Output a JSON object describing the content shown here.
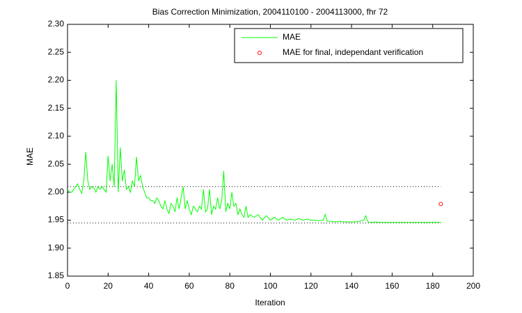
{
  "chart_data": {
    "type": "line",
    "title": "Bias Correction Minimization, 2004110100 - 2004113000, fhr 72",
    "x_label": "Iteration",
    "y_label": "MAE",
    "xlim": [
      0,
      200
    ],
    "xticks": [
      0,
      20,
      40,
      60,
      80,
      100,
      120,
      140,
      160,
      180,
      200
    ],
    "ylim": [
      1.85,
      2.3
    ],
    "yticks": [
      {
        "value": 1.85,
        "label": "1.85"
      },
      {
        "value": 1.9,
        "label": "1.90"
      },
      {
        "value": 1.95,
        "label": "1.95"
      },
      {
        "value": 2.0,
        "label": "2.00"
      },
      {
        "value": 2.05,
        "label": "2.05"
      },
      {
        "value": 2.1,
        "label": "2.10"
      },
      {
        "value": 2.15,
        "label": "2.15"
      },
      {
        "value": 2.2,
        "label": "2.20"
      },
      {
        "value": 2.25,
        "label": "2.25"
      },
      {
        "value": 2.3,
        "label": "2.30"
      }
    ],
    "legend": "top-right",
    "hlines": [
      2.01,
      1.945
    ],
    "hline_x": [
      0,
      184
    ],
    "series": [
      {
        "name": "MAE",
        "color": "#00ff00",
        "x": [
          0,
          1,
          2,
          3,
          4,
          5,
          6,
          7,
          8,
          9,
          10,
          11,
          12,
          13,
          14,
          15,
          16,
          17,
          18,
          19,
          20,
          21,
          22,
          23,
          24,
          25,
          26,
          27,
          28,
          29,
          30,
          31,
          32,
          33,
          34,
          35,
          36,
          37,
          38,
          39,
          40,
          41,
          42,
          43,
          44,
          45,
          46,
          47,
          48,
          49,
          50,
          51,
          52,
          53,
          54,
          55,
          56,
          57,
          58,
          59,
          60,
          61,
          62,
          63,
          64,
          65,
          66,
          67,
          68,
          69,
          70,
          71,
          72,
          73,
          74,
          75,
          76,
          77,
          78,
          79,
          80,
          81,
          82,
          83,
          84,
          85,
          86,
          87,
          88,
          89,
          90,
          92,
          94,
          96,
          98,
          100,
          102,
          104,
          106,
          108,
          110,
          112,
          114,
          116,
          118,
          120,
          122,
          124,
          126,
          127,
          128,
          130,
          132,
          134,
          136,
          138,
          140,
          142,
          144,
          146,
          147,
          148,
          150,
          152,
          154,
          156,
          158,
          160,
          162,
          164,
          166,
          168,
          170,
          172,
          174,
          176,
          178,
          180,
          182,
          184
        ],
        "values": [
          2.005,
          2.0,
          2.0,
          2.005,
          2.01,
          2.015,
          2.005,
          1.998,
          2.02,
          2.072,
          2.02,
          2.005,
          2.01,
          2.008,
          2.0,
          2.01,
          2.005,
          2.01,
          2.005,
          2.0,
          2.065,
          2.02,
          2.05,
          2.01,
          2.2,
          2.0,
          2.08,
          2.02,
          2.04,
          2.005,
          2.01,
          2.0,
          2.02,
          2.01,
          2.063,
          2.02,
          2.03,
          2.01,
          2.0,
          1.99,
          1.99,
          1.985,
          1.985,
          1.98,
          1.99,
          1.985,
          1.975,
          1.97,
          1.985,
          1.97,
          1.962,
          1.98,
          1.975,
          1.965,
          1.99,
          1.97,
          1.99,
          2.01,
          1.97,
          1.985,
          1.97,
          1.96,
          1.975,
          1.97,
          1.965,
          1.975,
          1.97,
          2.005,
          1.965,
          1.97,
          2.005,
          1.96,
          1.975,
          1.97,
          1.99,
          1.97,
          1.985,
          2.038,
          1.965,
          1.98,
          1.97,
          2.0,
          1.975,
          1.98,
          1.96,
          1.97,
          1.96,
          1.955,
          1.975,
          1.955,
          1.96,
          1.955,
          1.96,
          1.95,
          1.958,
          1.95,
          1.955,
          1.95,
          1.955,
          1.95,
          1.952,
          1.95,
          1.953,
          1.95,
          1.952,
          1.95,
          1.95,
          1.949,
          1.95,
          1.96,
          1.948,
          1.948,
          1.947,
          1.948,
          1.947,
          1.947,
          1.947,
          1.947,
          1.948,
          1.95,
          1.958,
          1.947,
          1.946,
          1.947,
          1.946,
          1.946,
          1.946,
          1.946,
          1.946,
          1.946,
          1.946,
          1.946,
          1.946,
          1.946,
          1.946,
          1.946,
          1.946,
          1.946,
          1.946,
          1.946
        ]
      },
      {
        "name": "MAE for final, independant verification",
        "color": "#ff0000",
        "marker": "circle",
        "x": [
          184
        ],
        "values": [
          1.979
        ]
      }
    ]
  }
}
